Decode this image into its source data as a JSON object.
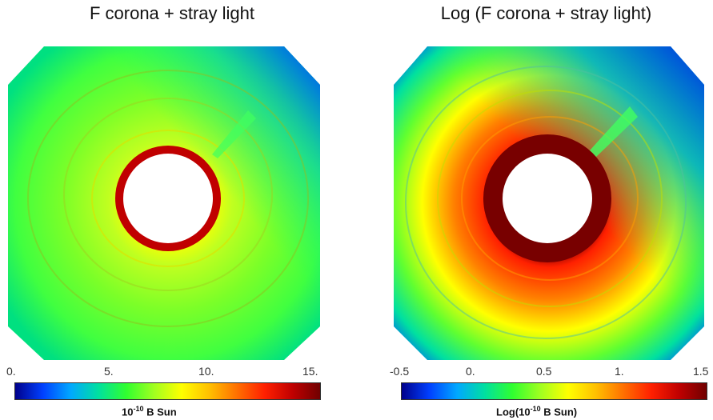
{
  "panels": [
    {
      "title": "F corona + stray light",
      "ticks": [
        "0.",
        "5.",
        "10.",
        "15."
      ],
      "colorbar_label_prefix": "10",
      "colorbar_label_exp": "-10",
      "colorbar_label_suffix": " B Sun"
    },
    {
      "title": "Log (F corona + stray light)",
      "ticks": [
        "-0.5",
        "0.",
        "0.5",
        "1.",
        "1.5"
      ],
      "colorbar_label_prefix": "Log(10",
      "colorbar_label_exp": "-10",
      "colorbar_label_suffix": " B Sun)"
    }
  ],
  "colors": {
    "colormap": [
      "#00008b",
      "#0040ff",
      "#00a8ff",
      "#00e0a0",
      "#30ff30",
      "#a0ff20",
      "#ffff00",
      "#ffc000",
      "#ff7000",
      "#ff2000",
      "#c00000",
      "#700000"
    ],
    "background": "#ffffff"
  }
}
